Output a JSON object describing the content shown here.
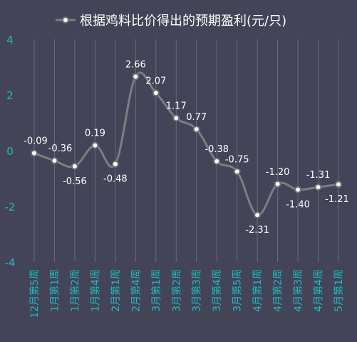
{
  "chart_data": {
    "type": "line",
    "title": "根据鸡料比价得出的预期盈利(元/只)",
    "legend": {
      "position": "top-center"
    },
    "categories": [
      "12月第5周",
      "1月第1周",
      "1月第2周",
      "1月第4周",
      "2月第1周",
      "2月第4周",
      "3月第1周",
      "3月第2周",
      "3月第3周",
      "3月第4周",
      "3月第5周",
      "4月第1周",
      "4月第2周",
      "4月第3周",
      "4月第4周",
      "5月第1周"
    ],
    "series": [
      {
        "name": "根据鸡料比价得出的预期盈利(元/只)",
        "values": [
          -0.09,
          -0.36,
          -0.56,
          0.19,
          -0.48,
          2.66,
          2.07,
          1.17,
          0.77,
          -0.38,
          -0.75,
          -2.31,
          -1.2,
          -1.4,
          -1.31,
          -1.21
        ]
      }
    ],
    "data_labels": [
      "-0.09",
      "-0.36",
      "-0.56",
      "0.19",
      "-0.48",
      "2.66",
      "2.07",
      "1.17",
      "0.77",
      "-0.38",
      "-0.75",
      "-2.31",
      "-1.20",
      "-1.40",
      "-1.31",
      "-1.21"
    ],
    "ylim": [
      -4,
      4
    ],
    "yticks": [
      "-4",
      "-2",
      "0",
      "2",
      "4"
    ],
    "grid": {
      "vertical": true,
      "horizontal": false
    },
    "xlabel": "",
    "ylabel": "",
    "colors": {
      "background": "#434458",
      "line": "#7d7d84",
      "marker_fill": "#ffffff",
      "marker_stroke": "#6e6e74",
      "axis_text": "#1fb9bd",
      "label_text": "#ffffff",
      "grid": "#8a8a9c",
      "title_text": "#ffffff"
    }
  }
}
